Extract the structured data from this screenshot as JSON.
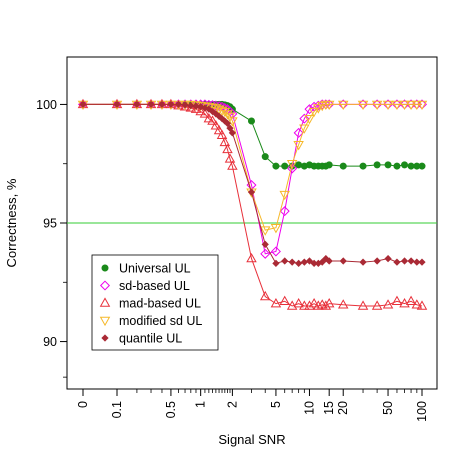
{
  "chart_data": {
    "type": "line",
    "xlabel": "Signal SNR",
    "ylabel": "Correctness, %",
    "x_scale": "log(SNR + 0.1)",
    "xlim": [
      0,
      100
    ],
    "ylim": [
      88,
      102
    ],
    "x_ticks": [
      {
        "value": 0,
        "label": "0"
      },
      {
        "value": 0.1,
        "label": "0.1"
      },
      {
        "value": 0.5,
        "label": "0.5"
      },
      {
        "value": 1,
        "label": "1"
      },
      {
        "value": 2,
        "label": "2"
      },
      {
        "value": 5,
        "label": "5"
      },
      {
        "value": 10,
        "label": "10"
      },
      {
        "value": 15,
        "label": "15"
      },
      {
        "value": 20,
        "label": "20"
      },
      {
        "value": 50,
        "label": "50"
      },
      {
        "value": 100,
        "label": "100"
      }
    ],
    "x_minor_ticks": [
      0.2,
      0.3,
      0.4,
      0.6,
      0.7,
      0.8,
      0.9,
      1.1,
      1.2,
      1.3,
      1.4,
      1.5,
      1.6,
      1.7,
      1.8,
      1.9,
      3,
      4,
      6,
      7,
      8,
      9,
      30,
      40,
      60,
      70,
      80,
      90
    ],
    "y_ticks": [
      {
        "value": 90,
        "label": "90"
      },
      {
        "value": 95,
        "label": "95"
      },
      {
        "value": 100,
        "label": "100"
      }
    ],
    "y_minor_ticks": [
      88.5,
      92.5,
      97.5
    ],
    "reference_line": {
      "y": 95,
      "color": "#33cc33"
    },
    "legend_position": "bottom-left",
    "series": [
      {
        "name": "Universal UL",
        "color": "#1a8a1a",
        "marker": "circle",
        "x": [
          0,
          0.1,
          0.2,
          0.3,
          0.4,
          0.5,
          0.6,
          0.7,
          0.8,
          0.9,
          1,
          1.1,
          1.2,
          1.3,
          1.4,
          1.5,
          1.6,
          1.7,
          1.8,
          1.9,
          2,
          3,
          4,
          5,
          6,
          7,
          8,
          9,
          10,
          11,
          12,
          13,
          14,
          15,
          20,
          30,
          40,
          50,
          60,
          70,
          80,
          90,
          100
        ],
        "y": [
          100,
          100,
          100,
          100,
          100,
          100,
          100,
          100,
          100,
          100,
          100,
          100,
          100,
          100,
          100,
          100,
          100,
          99.98,
          99.95,
          99.9,
          99.8,
          99.3,
          97.8,
          97.4,
          97.4,
          97.4,
          97.45,
          97.4,
          97.45,
          97.4,
          97.4,
          97.4,
          97.4,
          97.45,
          97.4,
          97.4,
          97.45,
          97.45,
          97.4,
          97.45,
          97.4,
          97.4,
          97.4
        ]
      },
      {
        "name": "sd-based UL",
        "color": "#ee00ee",
        "marker": "diamond",
        "x": [
          0,
          0.1,
          0.2,
          0.3,
          0.4,
          0.5,
          0.6,
          0.7,
          0.8,
          0.9,
          1,
          1.1,
          1.2,
          1.3,
          1.4,
          1.5,
          1.6,
          1.7,
          1.8,
          1.9,
          2,
          3,
          4,
          5,
          6,
          7,
          8,
          9,
          10,
          11,
          12,
          13,
          14,
          15,
          20,
          30,
          40,
          50,
          60,
          70,
          80,
          90,
          100
        ],
        "y": [
          100,
          100,
          100,
          100,
          100,
          100,
          100,
          100,
          100,
          100,
          100,
          100,
          99.98,
          99.97,
          99.95,
          99.93,
          99.9,
          99.85,
          99.8,
          99.7,
          99.6,
          96.6,
          93.7,
          93.8,
          95.5,
          97.3,
          98.8,
          99.4,
          99.8,
          99.9,
          99.95,
          100,
          100,
          100,
          100,
          100,
          100,
          100,
          100,
          100,
          100,
          100,
          100
        ]
      },
      {
        "name": "mad-based UL",
        "color": "#e8303a",
        "marker": "triangle-up",
        "x": [
          0,
          0.1,
          0.2,
          0.3,
          0.4,
          0.5,
          0.6,
          0.7,
          0.8,
          0.9,
          1,
          1.1,
          1.2,
          1.3,
          1.4,
          1.5,
          1.6,
          1.7,
          1.8,
          1.9,
          2,
          3,
          4,
          5,
          6,
          7,
          8,
          9,
          10,
          11,
          12,
          13,
          14,
          15,
          20,
          30,
          40,
          50,
          60,
          70,
          80,
          90,
          100
        ],
        "y": [
          100,
          100,
          100,
          100,
          100,
          100,
          99.95,
          99.9,
          99.85,
          99.8,
          99.7,
          99.6,
          99.4,
          99.3,
          99.1,
          98.9,
          98.7,
          98.4,
          98.1,
          97.7,
          97.4,
          93.5,
          91.9,
          91.6,
          91.7,
          91.5,
          91.6,
          91.5,
          91.5,
          91.6,
          91.5,
          91.55,
          91.5,
          91.6,
          91.55,
          91.5,
          91.5,
          91.55,
          91.7,
          91.6,
          91.7,
          91.55,
          91.5
        ]
      },
      {
        "name": "modified sd UL",
        "color": "#f6b829",
        "marker": "triangle-down",
        "x": [
          0,
          0.1,
          0.2,
          0.3,
          0.4,
          0.5,
          0.6,
          0.7,
          0.8,
          0.9,
          1,
          1.1,
          1.2,
          1.3,
          1.4,
          1.5,
          1.6,
          1.7,
          1.8,
          1.9,
          2,
          3,
          4,
          5,
          6,
          7,
          8,
          9,
          10,
          11,
          12,
          13,
          14,
          15,
          20,
          30,
          40,
          50,
          60,
          70,
          80,
          90,
          100
        ],
        "y": [
          100,
          100,
          100,
          100,
          100,
          100,
          100,
          100,
          100,
          99.98,
          99.95,
          99.93,
          99.9,
          99.88,
          99.85,
          99.8,
          99.75,
          99.7,
          99.6,
          99.5,
          99.3,
          96.3,
          94.7,
          94.8,
          96.2,
          97.5,
          98.3,
          99.0,
          99.4,
          99.7,
          99.85,
          99.95,
          100,
          100,
          100,
          100,
          100,
          100,
          100,
          100,
          100,
          100,
          100
        ]
      },
      {
        "name": "quantile UL",
        "color": "#aa2a35",
        "marker": "diamond-filled",
        "x": [
          0,
          0.1,
          0.2,
          0.3,
          0.4,
          0.5,
          0.6,
          0.7,
          0.8,
          0.9,
          1,
          1.1,
          1.2,
          1.3,
          1.4,
          1.5,
          1.6,
          1.7,
          1.8,
          1.9,
          2,
          3,
          4,
          5,
          6,
          7,
          8,
          9,
          10,
          11,
          12,
          13,
          14,
          15,
          20,
          30,
          40,
          50,
          60,
          70,
          80,
          90,
          100
        ],
        "y": [
          100,
          100,
          100,
          100,
          100,
          100,
          100,
          99.98,
          99.95,
          99.93,
          99.9,
          99.85,
          99.8,
          99.7,
          99.6,
          99.5,
          99.4,
          99.3,
          99.2,
          99.0,
          98.8,
          96.3,
          94.1,
          93.3,
          93.4,
          93.35,
          93.3,
          93.35,
          93.4,
          93.3,
          93.3,
          93.35,
          93.5,
          93.4,
          93.4,
          93.35,
          93.4,
          93.5,
          93.35,
          93.4,
          93.4,
          93.35,
          93.35
        ]
      }
    ]
  }
}
